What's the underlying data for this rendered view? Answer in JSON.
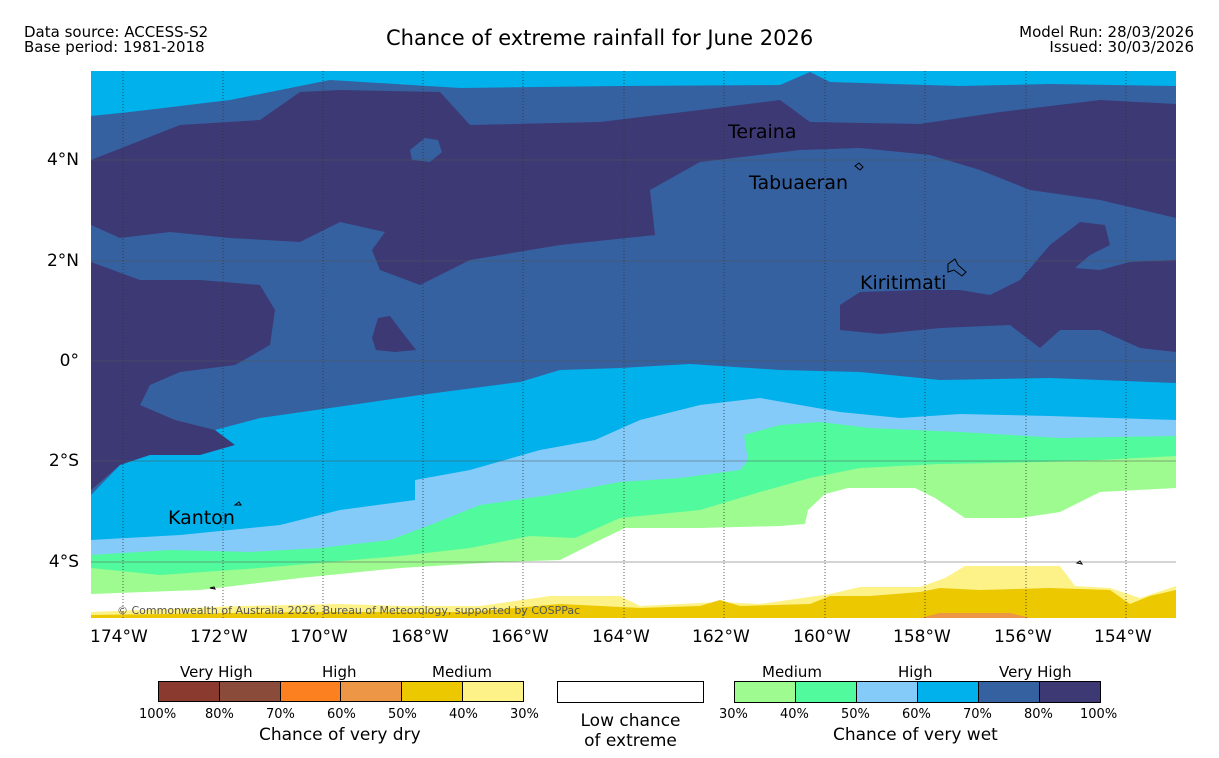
{
  "header": {
    "data_source": "Data source: ACCESS-S2",
    "base_period": "Base period: 1981-2018",
    "title": "Chance of extreme rainfall for June 2026",
    "model_run": "Model Run: 28/03/2026",
    "issued": "Issued: 30/03/2026"
  },
  "map": {
    "lat_labels": [
      "4°N",
      "2°N",
      "0°",
      "2°S",
      "4°S"
    ],
    "lon_labels": [
      "174°W",
      "172°W",
      "170°W",
      "168°W",
      "166°W",
      "164°W",
      "162°W",
      "160°W",
      "158°W",
      "156°W",
      "154°W"
    ],
    "places": [
      "Teraina",
      "Tabuaeran",
      "Kiritimati",
      "Kanton"
    ],
    "copyright": "© Commonwealth of Australia 2026, Bureau of Meteorology, supported by COSPPac"
  },
  "legend": {
    "dry": {
      "categories": [
        "Very High",
        "High",
        "Medium"
      ],
      "ticks": [
        "100%",
        "80%",
        "70%",
        "60%",
        "50%",
        "40%",
        "30%"
      ],
      "title": "Chance of very dry",
      "colors": [
        "#8b3a2f",
        "#8b4b3a",
        "#fc7f20",
        "#ed9645",
        "#ebc800",
        "#fdf287"
      ]
    },
    "low": {
      "line1": "Low chance",
      "line2": "of extreme",
      "color": "#ffffff"
    },
    "wet": {
      "categories": [
        "Medium",
        "High",
        "Very High"
      ],
      "ticks": [
        "30%",
        "40%",
        "50%",
        "60%",
        "70%",
        "80%",
        "100%"
      ],
      "title": "Chance of very wet",
      "colors": [
        "#9dfb8f",
        "#51fb9d",
        "#84cbf9",
        "#00b1ec",
        "#3561a0",
        "#3d3975"
      ]
    }
  }
}
